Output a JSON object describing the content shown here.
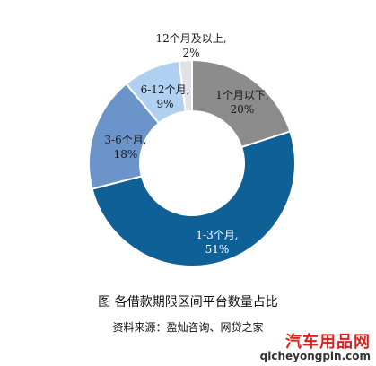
{
  "chart_data": {
    "type": "donut",
    "title": "图 各借款期限区间平台数量占比",
    "source": "资料来源：盈灿咨询、网贷之家",
    "slices": [
      {
        "label": "1个月以下,",
        "value": 20,
        "value_label": "20%",
        "color": "#8c8c8c",
        "label_color": "#1a1a1a"
      },
      {
        "label": "1-3个月,",
        "value": 51,
        "value_label": "51%",
        "color": "#0f6096",
        "label_color": "#ffffff"
      },
      {
        "label": "3-6个月,",
        "value": 18,
        "value_label": "18%",
        "color": "#6b95ca",
        "label_color": "#1a1a1a"
      },
      {
        "label": "6-12个月,",
        "value": 9,
        "value_label": "9%",
        "color": "#b0d0f2",
        "label_color": "#1a1a1a"
      },
      {
        "label": "12个月及以上,",
        "value": 2,
        "value_label": "2%",
        "color": "#dfe3e8",
        "label_color": "#1a1a1a"
      }
    ]
  },
  "watermark": {
    "title": "汽车用品网",
    "url": "qicheyongpin.com"
  }
}
